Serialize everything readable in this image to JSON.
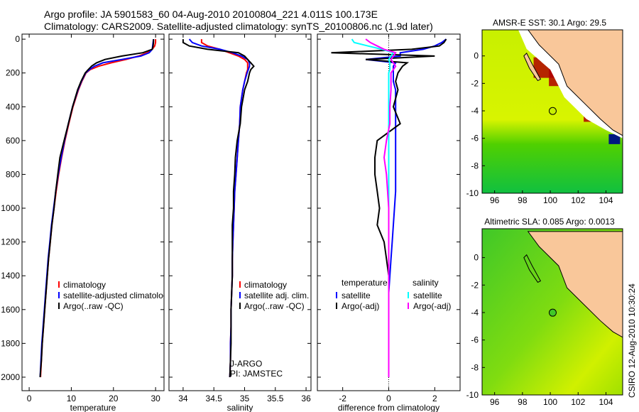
{
  "title_line1": "Argo profile: JA 5901583_60 04-Aug-2010 20100804_221 4.011S 100.173E",
  "title_line2": "Climatology: CARS2009. Satellite-adjusted climatology: synTS_20100806.nc (1.9d later)",
  "footer": "CSIRO 12-Aug-2010 10:30:24",
  "colors": {
    "climatology": "#ff0000",
    "satellite": "#0000ff",
    "argo": "#000000",
    "sal_satellite": "#00ffff",
    "sal_argo": "#ff00ff",
    "land": "#f9c79a"
  },
  "chart_data": [
    {
      "type": "line",
      "xlabel": "temperature",
      "ylabel": "",
      "xlim": [
        -1.7,
        32
      ],
      "ylim": [
        2080,
        -30
      ],
      "xticks": [
        "0",
        "10",
        "20",
        "30"
      ],
      "yticks": [
        "0",
        "200",
        "400",
        "600",
        "800",
        "1000",
        "1200",
        "1400",
        "1600",
        "1800",
        "2000"
      ],
      "depth": [
        0,
        20,
        40,
        60,
        80,
        100,
        120,
        140,
        160,
        180,
        200,
        250,
        300,
        400,
        500,
        600,
        700,
        800,
        900,
        1000,
        1100,
        1200,
        1300,
        1400,
        1500,
        1600,
        1700,
        1800,
        1900,
        2000
      ],
      "series": [
        {
          "name": "climatology",
          "color": "#ff0000",
          "values": [
            30,
            30,
            29.8,
            29.2,
            28,
            26,
            23,
            19.5,
            16.5,
            14.5,
            13.5,
            12.5,
            11.7,
            10.4,
            9.4,
            8.5,
            7.7,
            7.0,
            6.4,
            5.9,
            5.4,
            5.0,
            4.6,
            4.3,
            4.0,
            3.7,
            3.4,
            3.1,
            2.9,
            2.7
          ]
        },
        {
          "name": "satellite-adjusted climatology",
          "color": "#0000ff",
          "values": [
            29.5,
            29.4,
            29.3,
            29.2,
            28.5,
            26.5,
            22,
            17.5,
            15.5,
            14.3,
            13.4,
            12.4,
            11.6,
            10.3,
            9.3,
            8.4,
            7.6,
            6.9,
            6.3,
            5.8,
            5.3,
            4.9,
            4.5,
            4.2,
            3.9,
            3.6,
            3.3,
            3.0,
            2.8,
            2.6
          ]
        },
        {
          "name": "Argo(..raw -QC)",
          "color": "#000000",
          "values": [
            29.5,
            29.5,
            29.4,
            29.2,
            27,
            22,
            18,
            16,
            14.8,
            14,
            13.3,
            12.3,
            11.5,
            10.3,
            9.3,
            8.3,
            7.3,
            6.8,
            6.3,
            5.9,
            5.4,
            5.0,
            4.6,
            4.3,
            4.0,
            3.7,
            3.4,
            3.1,
            2.9,
            2.6
          ]
        }
      ],
      "legend": [
        "climatology",
        "satellite-adjusted climatology",
        "Argo(..raw -QC)"
      ],
      "legend_placement": "bottom-center"
    },
    {
      "type": "line",
      "xlabel": "salinity",
      "xlim": [
        33.77,
        36.08
      ],
      "ylim": [
        2080,
        -30
      ],
      "xticks": [
        "34",
        "34.5",
        "35",
        "35.5",
        "36"
      ],
      "depth": [
        0,
        20,
        40,
        60,
        80,
        100,
        120,
        140,
        160,
        180,
        200,
        250,
        300,
        400,
        500,
        600,
        700,
        800,
        900,
        1000,
        1100,
        1200,
        1300,
        1400,
        1500,
        1600,
        1700,
        1800,
        1900,
        2000
      ],
      "series": [
        {
          "name": "climatology",
          "color": "#ff0000",
          "values": [
            34.3,
            34.3,
            34.4,
            34.6,
            34.75,
            34.9,
            35.0,
            35.05,
            35.05,
            35.05,
            35.03,
            35.0,
            34.97,
            34.93,
            34.92,
            34.9,
            34.88,
            34.86,
            34.84,
            34.83,
            34.82,
            34.81,
            34.8,
            34.8,
            34.79,
            34.78,
            34.78,
            34.77,
            34.77,
            34.76
          ]
        },
        {
          "name": "satellite adj. clim.",
          "color": "#0000ff",
          "values": [
            34.1,
            34.15,
            34.3,
            34.6,
            34.8,
            34.95,
            35.05,
            35.08,
            35.08,
            35.06,
            35.04,
            35.0,
            34.97,
            34.93,
            34.92,
            34.9,
            34.88,
            34.86,
            34.84,
            34.83,
            34.82,
            34.81,
            34.8,
            34.8,
            34.79,
            34.78,
            34.78,
            34.77,
            34.77,
            34.76
          ]
        },
        {
          "name": "Argo(..raw -QC)",
          "color": "#000000",
          "values": [
            34.0,
            34.0,
            34.1,
            34.4,
            34.9,
            35.0,
            35.05,
            35.1,
            35.15,
            35.1,
            35.08,
            35.05,
            35.0,
            34.95,
            34.93,
            34.88,
            34.85,
            34.84,
            34.82,
            34.82,
            34.8,
            34.8,
            34.8,
            34.8,
            34.79,
            34.78,
            34.78,
            34.78,
            34.77,
            34.76
          ]
        }
      ],
      "legend": [
        "climatology",
        "satellite adj. clim.",
        "Argo(..raw -QC)"
      ],
      "annotations": [
        "J-ARGO",
        "PI: JAMSTEC"
      ]
    },
    {
      "type": "line",
      "xlabel": "difference from climatology",
      "xlim": [
        -3.1,
        3.1
      ],
      "ylim": [
        2080,
        -30
      ],
      "xticks": [
        "-2",
        "0",
        "2"
      ],
      "depth": [
        0,
        20,
        40,
        60,
        80,
        100,
        120,
        140,
        160,
        180,
        200,
        250,
        300,
        400,
        500,
        600,
        700,
        800,
        900,
        1000,
        1100,
        1200,
        1300,
        1400,
        1500,
        1600,
        1700,
        1800,
        1900,
        2000
      ],
      "series": [
        {
          "name": "temperature satellite",
          "color": "#0000ff",
          "values": [
            2.5,
            2.3,
            2,
            1.5,
            0.5,
            0.5,
            -1,
            0.3,
            0.2,
            0.2,
            0.2,
            0.2,
            0.3,
            0.3,
            0.3,
            0.3,
            0.3,
            0.3,
            0.3,
            0.25,
            0.2,
            0.15,
            0.1,
            0.05,
            0,
            0,
            0,
            0,
            0,
            0
          ]
        },
        {
          "name": "temperature Argo(-adj)",
          "color": "#000000",
          "values": [
            2.5,
            2.4,
            2.2,
            1,
            -2.5,
            2,
            -1,
            0.8,
            0.6,
            0.5,
            0.4,
            0.3,
            0.4,
            0.2,
            0.5,
            -0.5,
            -0.6,
            -0.6,
            -0.5,
            -0.4,
            -0.5,
            -0.2,
            -0.1,
            0,
            0,
            0,
            0,
            0,
            0,
            0
          ]
        },
        {
          "name": "salinity satellite",
          "color": "#00ffff",
          "values": [
            -1.6,
            -1.5,
            -0.9,
            -0.3,
            0.2,
            0.1,
            0,
            0.05,
            0.05,
            0.05,
            0,
            0,
            0,
            0,
            0,
            0,
            0,
            0,
            0,
            0,
            0,
            0,
            0,
            0,
            0,
            0,
            0,
            0,
            0,
            0
          ]
        },
        {
          "name": "salinity Argo(-adj)",
          "color": "#ff00ff",
          "values": [
            -1.0,
            -0.8,
            -0.5,
            -0.2,
            0.3,
            0.2,
            0.1,
            0.2,
            0.3,
            0.2,
            0.1,
            0.1,
            0.1,
            0.05,
            0.05,
            -0.1,
            -0.2,
            -0.1,
            -0.05,
            0,
            0,
            0,
            0,
            0,
            0,
            0,
            0,
            0,
            0,
            0
          ]
        }
      ],
      "legend": {
        "temperature": "temperature",
        "salinity": "salinity",
        "satellite": "satellite",
        "argo": "Argo(-adj)"
      }
    },
    {
      "type": "heatmap",
      "title": "AMSR-E SST: 30.1 Argo: 29.5",
      "xlim": [
        95.1,
        105.2
      ],
      "ylim": [
        -10,
        1.9
      ],
      "xticks": [
        "96",
        "98",
        "100",
        "102",
        "104"
      ],
      "yticks": [
        "0",
        "-2",
        "-4",
        "-6",
        "-8",
        "-10"
      ],
      "argo_position": [
        100.173,
        -4.011
      ]
    },
    {
      "type": "heatmap",
      "title": "Altimetric SLA: 0.085 Argo: 0.0013",
      "xlim": [
        95.1,
        105.2
      ],
      "ylim": [
        -10,
        2.1
      ],
      "xticks": [
        "96",
        "98",
        "100",
        "102",
        "104"
      ],
      "yticks": [
        "0",
        "-2",
        "-4",
        "-6",
        "-8",
        "-10"
      ],
      "argo_position": [
        100.173,
        -4.011
      ]
    }
  ]
}
